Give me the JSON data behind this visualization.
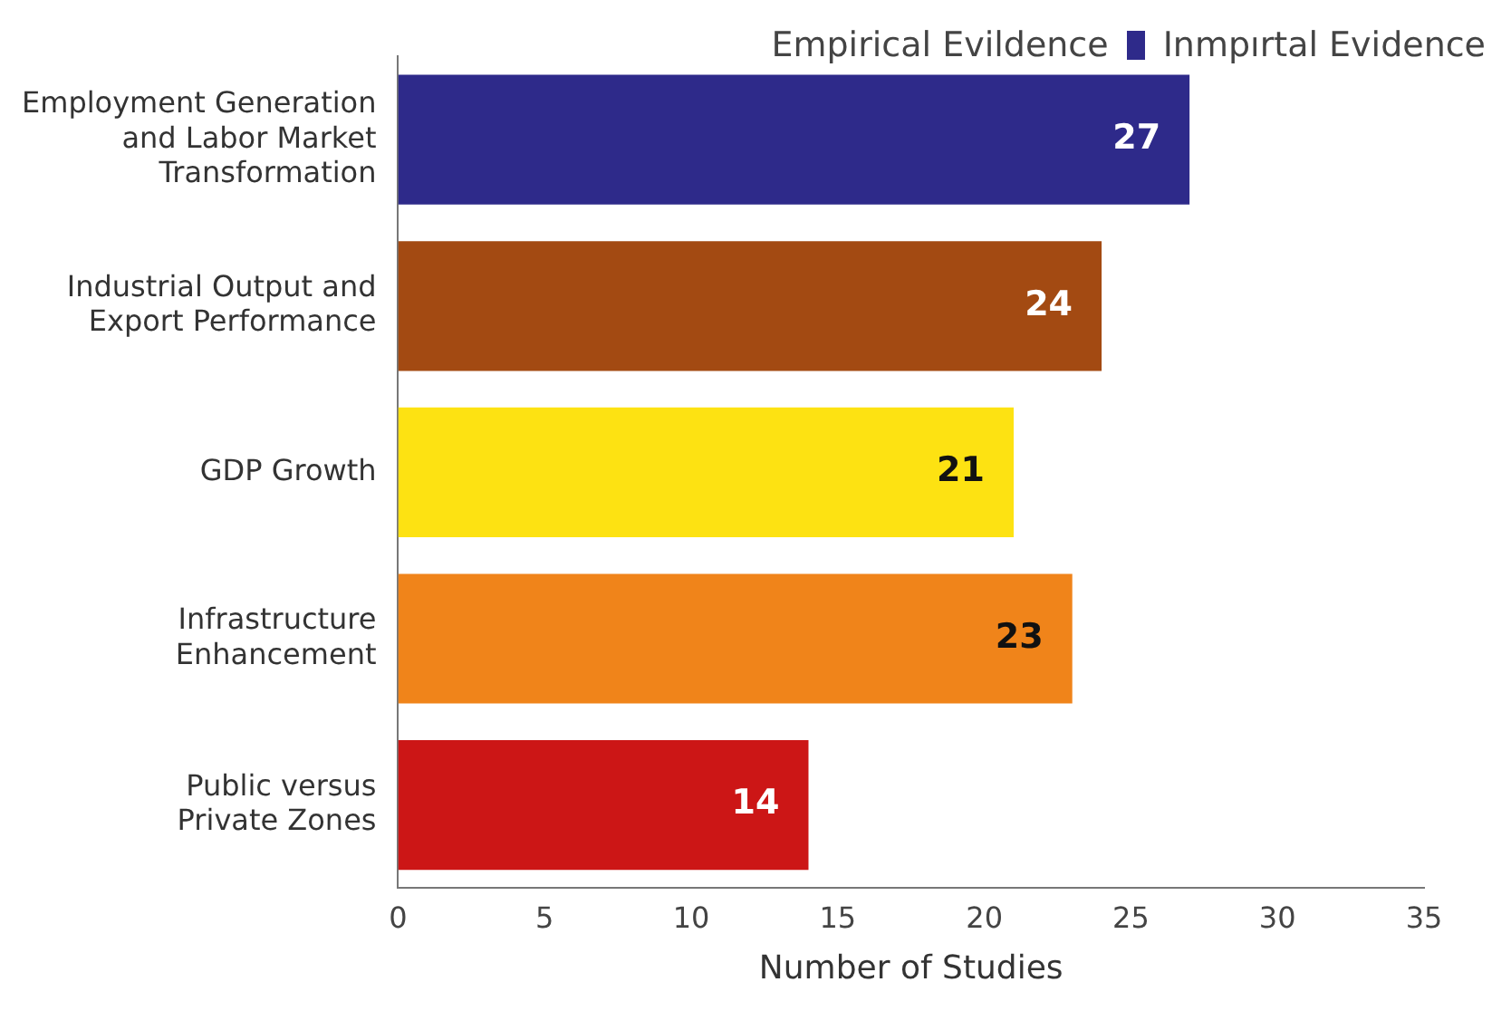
{
  "chart_data": {
    "type": "bar",
    "orientation": "horizontal",
    "categories": [
      "Employment Generation and Labor Market Transformation",
      "Industrial Output and Export Performance",
      "GDP Growth",
      "Infrastructure Enhancement",
      "Public versus Private Zones"
    ],
    "series": [
      {
        "name": "Inmpırtal Evidence",
        "color": "#2e2a8a",
        "colors": [
          "#2e2a8a",
          "#a34a12",
          "#fde212",
          "#f0841a",
          "#cc1616"
        ],
        "values": [
          27,
          24,
          21,
          23,
          14
        ]
      }
    ],
    "data_labels": true,
    "legend_title": "Empirical Evildence",
    "legend": "top right",
    "xlabel": "Number of Studies",
    "xlim": [
      0,
      35
    ],
    "xticks": [
      0,
      5,
      10,
      15,
      20,
      25,
      30,
      35
    ],
    "grid": false
  }
}
